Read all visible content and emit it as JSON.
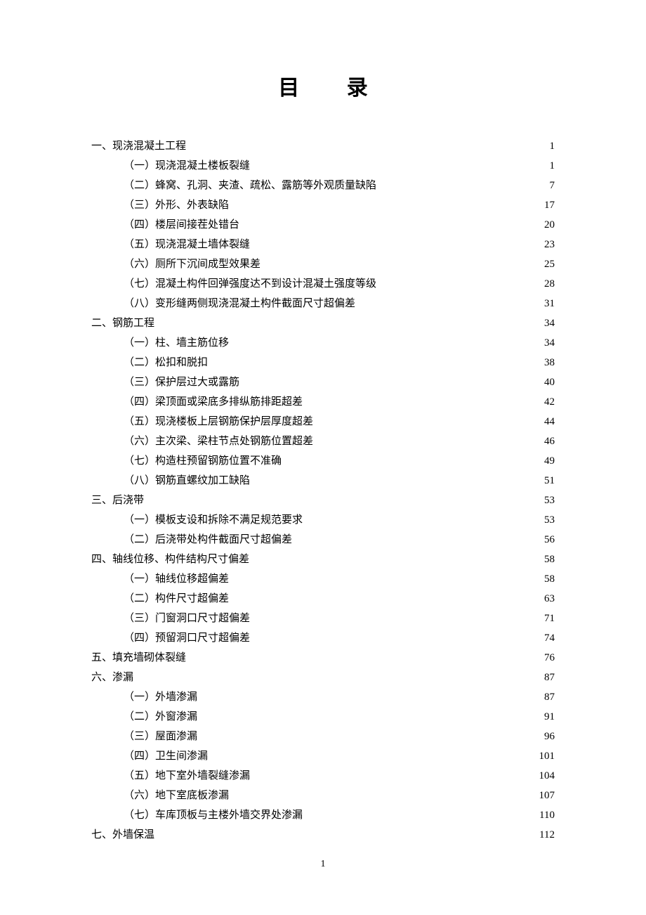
{
  "title": "目 录",
  "page_number": "1",
  "entries": [
    {
      "level": 1,
      "label": "一、现浇混凝土工程",
      "page": "1"
    },
    {
      "level": 2,
      "label": "（一）现浇混凝土楼板裂缝",
      "page": "1"
    },
    {
      "level": 2,
      "label": "（二）蜂窝、孔洞、夹渣、疏松、露筋等外观质量缺陷",
      "page": "7"
    },
    {
      "level": 2,
      "label": "（三）外形、外表缺陷",
      "page": "17"
    },
    {
      "level": 2,
      "label": "（四）楼层间接茬处错台",
      "page": "20"
    },
    {
      "level": 2,
      "label": "（五）现浇混凝土墙体裂缝",
      "page": "23"
    },
    {
      "level": 2,
      "label": "（六）厕所下沉间成型效果差",
      "page": "25"
    },
    {
      "level": 2,
      "label": "（七）混凝土构件回弹强度达不到设计混凝土强度等级",
      "page": "28"
    },
    {
      "level": 2,
      "label": "（八）变形缝两侧现浇混凝土构件截面尺寸超偏差",
      "page": "31"
    },
    {
      "level": 1,
      "label": "二、钢筋工程",
      "page": "34"
    },
    {
      "level": 2,
      "label": "（一）柱、墙主筋位移",
      "page": "34"
    },
    {
      "level": 2,
      "label": "（二）松扣和脱扣",
      "page": "38"
    },
    {
      "level": 2,
      "label": "（三）保护层过大或露筋",
      "page": "40"
    },
    {
      "level": 2,
      "label": "（四）梁顶面或梁底多排纵筋排距超差",
      "page": "42"
    },
    {
      "level": 2,
      "label": "（五）现浇楼板上层钢筋保护层厚度超差",
      "page": "44"
    },
    {
      "level": 2,
      "label": "（六）主次梁、梁柱节点处钢筋位置超差",
      "page": "46"
    },
    {
      "level": 2,
      "label": "（七）构造柱预留钢筋位置不准确",
      "page": "49"
    },
    {
      "level": 2,
      "label": "（八）钢筋直螺纹加工缺陷",
      "page": "51"
    },
    {
      "level": 1,
      "label": "三、后浇带",
      "page": "53"
    },
    {
      "level": 2,
      "label": "（一）模板支设和拆除不满足规范要求",
      "page": "53"
    },
    {
      "level": 2,
      "label": "（二）后浇带处构件截面尺寸超偏差",
      "page": "56"
    },
    {
      "level": 1,
      "label": "四、轴线位移、构件结构尺寸偏差",
      "page": "58"
    },
    {
      "level": 2,
      "label": "（一）轴线位移超偏差",
      "page": "58"
    },
    {
      "level": 2,
      "label": "（二）构件尺寸超偏差",
      "page": "63"
    },
    {
      "level": 2,
      "label": "（三）门窗洞口尺寸超偏差",
      "page": "71"
    },
    {
      "level": 2,
      "label": "（四）预留洞口尺寸超偏差",
      "page": "74"
    },
    {
      "level": 1,
      "label": "五、填充墙砌体裂缝",
      "page": "76"
    },
    {
      "level": 1,
      "label": "六、渗漏",
      "page": "87"
    },
    {
      "level": 2,
      "label": "（一）外墙渗漏",
      "page": "87"
    },
    {
      "level": 2,
      "label": "（二）外窗渗漏",
      "page": "91"
    },
    {
      "level": 2,
      "label": "（三）屋面渗漏",
      "page": "96"
    },
    {
      "level": 2,
      "label": "（四）卫生间渗漏",
      "page": "101"
    },
    {
      "level": 2,
      "label": "（五）地下室外墙裂缝渗漏",
      "page": "104"
    },
    {
      "level": 2,
      "label": "（六）地下室底板渗漏",
      "page": "107"
    },
    {
      "level": 2,
      "label": "（七）车库顶板与主楼外墙交界处渗漏",
      "page": "110"
    },
    {
      "level": 1,
      "label": "七、外墙保温",
      "page": "112"
    }
  ]
}
